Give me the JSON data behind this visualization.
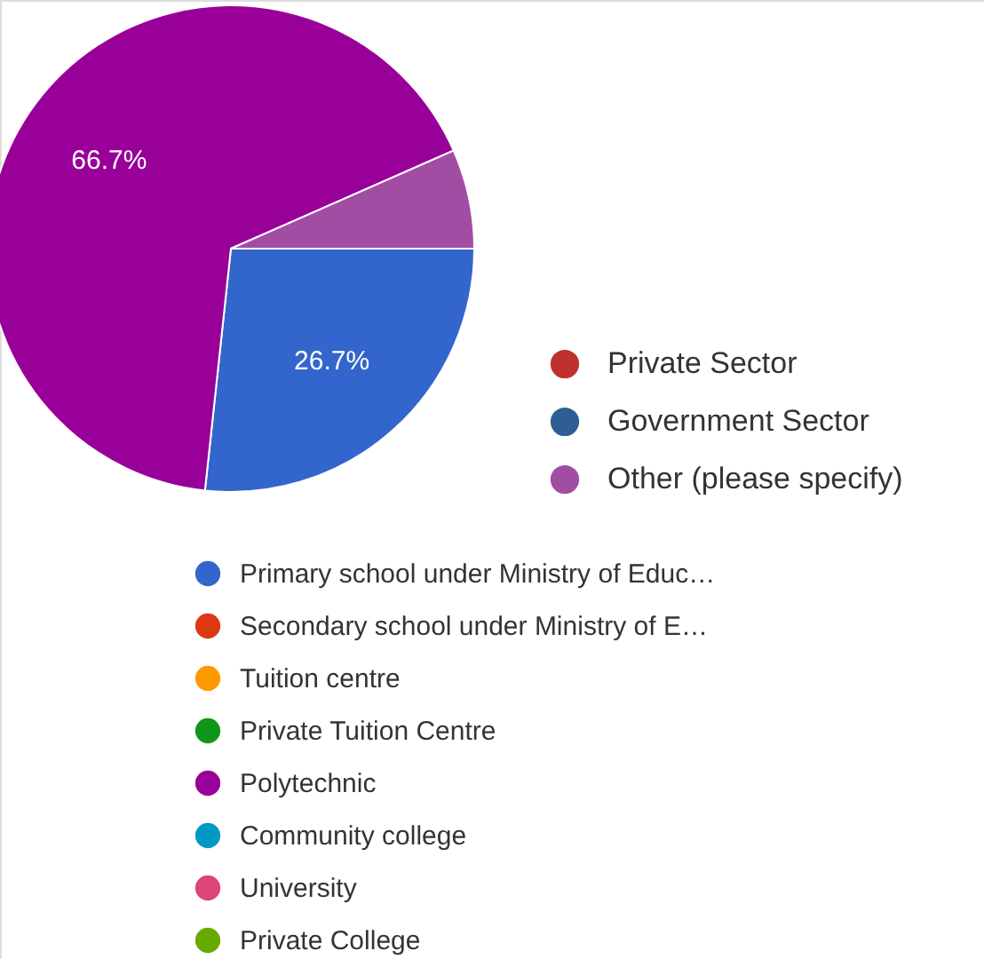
{
  "chart_data": {
    "type": "pie",
    "categories": [
      "Primary school under Ministry of Educ…",
      "Secondary school under Ministry of E…",
      "Tuition centre",
      "Private Tuition Centre",
      "Polytechnic",
      "Community college",
      "University",
      "Private College",
      "Private Sector",
      "Government Sector",
      "Other (please specify)"
    ],
    "values": [
      26.7,
      0,
      0,
      0,
      66.7,
      0,
      0,
      0,
      0,
      0,
      6.6
    ],
    "colors": [
      "#3366cc",
      "#dc3912",
      "#ff9900",
      "#109618",
      "#990099",
      "#0099c6",
      "#dd4477",
      "#66aa00",
      "#c0302f",
      "#2e5e93",
      "#a24da4"
    ],
    "value_labels": [
      "26.7%",
      null,
      null,
      null,
      "66.7%",
      null,
      null,
      null,
      null,
      null,
      null
    ],
    "legend": "bottom right"
  }
}
